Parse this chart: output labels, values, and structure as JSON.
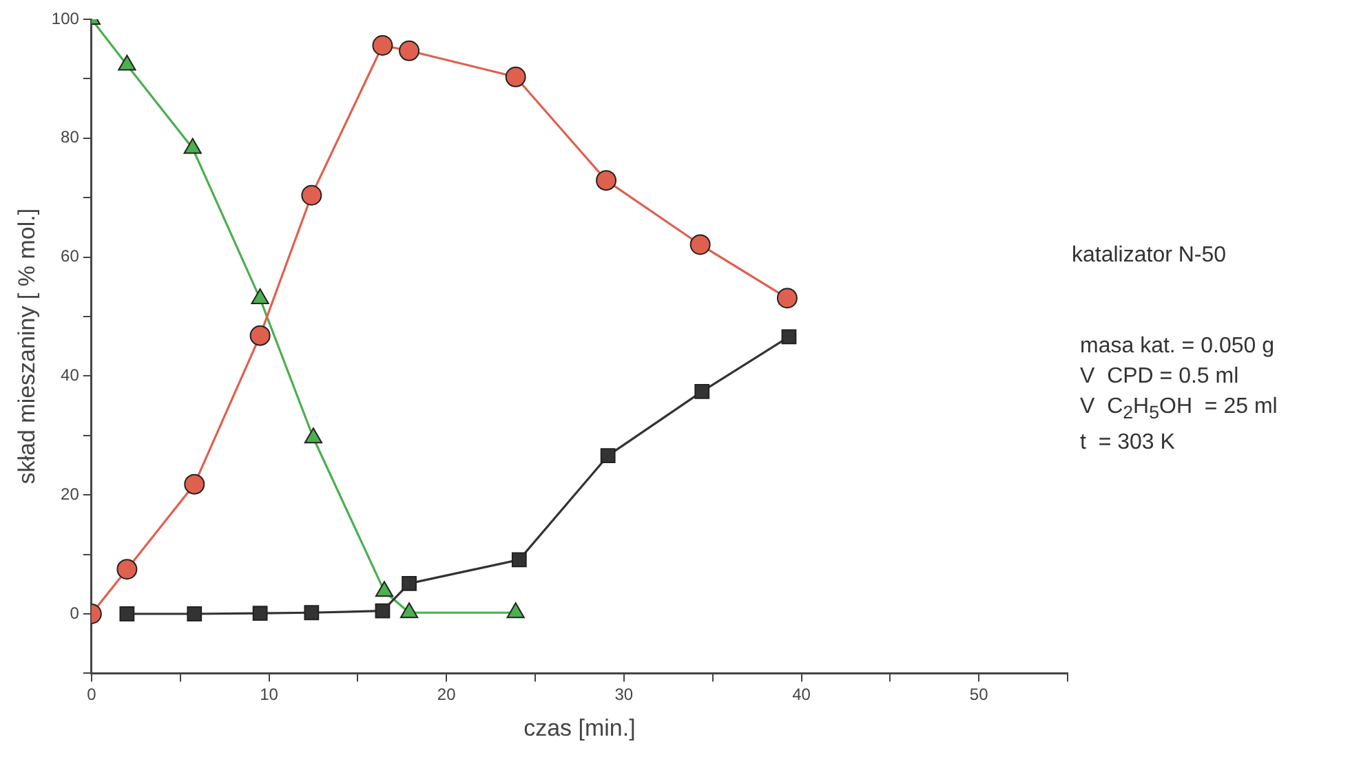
{
  "chart_data": {
    "type": "line",
    "xlabel": "czas [min.]",
    "ylabel": "skład mieszaniny [ % mol.]",
    "xlim": [
      0,
      55
    ],
    "xticks": [
      0,
      {
        "value": 5,
        "label": null
      },
      10,
      {
        "value": 15,
        "label": null
      },
      20,
      {
        "value": 25,
        "label": null
      },
      30,
      {
        "value": 35,
        "label": null
      },
      40,
      {
        "value": 45,
        "label": null
      },
      50,
      {
        "value": 55,
        "label": null
      }
    ],
    "ylim": [
      -10,
      100
    ],
    "yticks": [
      {
        "value": -10,
        "label": null
      },
      0,
      {
        "value": 10,
        "label": null
      },
      20,
      {
        "value": 30,
        "label": null
      },
      40,
      {
        "value": 50,
        "label": null
      },
      60,
      {
        "value": 70,
        "label": null
      },
      80,
      {
        "value": 90,
        "label": null
      },
      100
    ],
    "grid": false,
    "legend": false,
    "line_style": "solid",
    "series": [
      {
        "color": "#e0604f",
        "marker": "circle",
        "x": [
          0,
          2,
          5.8,
          9.5,
          12.4,
          16.4,
          17.9,
          23.9,
          29,
          34.3,
          39.2
        ],
        "values": [
          0,
          7.5,
          21.8,
          46.8,
          70.4,
          95.6,
          94.7,
          90.3,
          72.9,
          62.1,
          53.1
        ]
      },
      {
        "color": "#333333",
        "marker": "square",
        "x": [
          2,
          5.8,
          9.5,
          12.4,
          16.4,
          17.9,
          24.1,
          29.1,
          34.4,
          39.3
        ],
        "values": [
          0,
          0,
          0.1,
          0.2,
          0.5,
          5.1,
          9.1,
          26.6,
          37.4,
          46.6
        ]
      },
      {
        "color": "#4caf50",
        "marker": "triangle",
        "x": [
          0,
          2,
          5.7,
          9.5,
          12.5,
          16.5,
          17.9,
          23.9
        ],
        "values": [
          100,
          92.3,
          78.3,
          53,
          29.6,
          3.8,
          0.2,
          0.2
        ]
      }
    ],
    "annotations": [
      "katalizator N-50",
      "masa kat. = 0.050 g",
      "V  CPD = 0.5 ml",
      "V  C$_{2}$H$_{5}$OH  = 25 ml",
      "t  = 303 K"
    ]
  }
}
